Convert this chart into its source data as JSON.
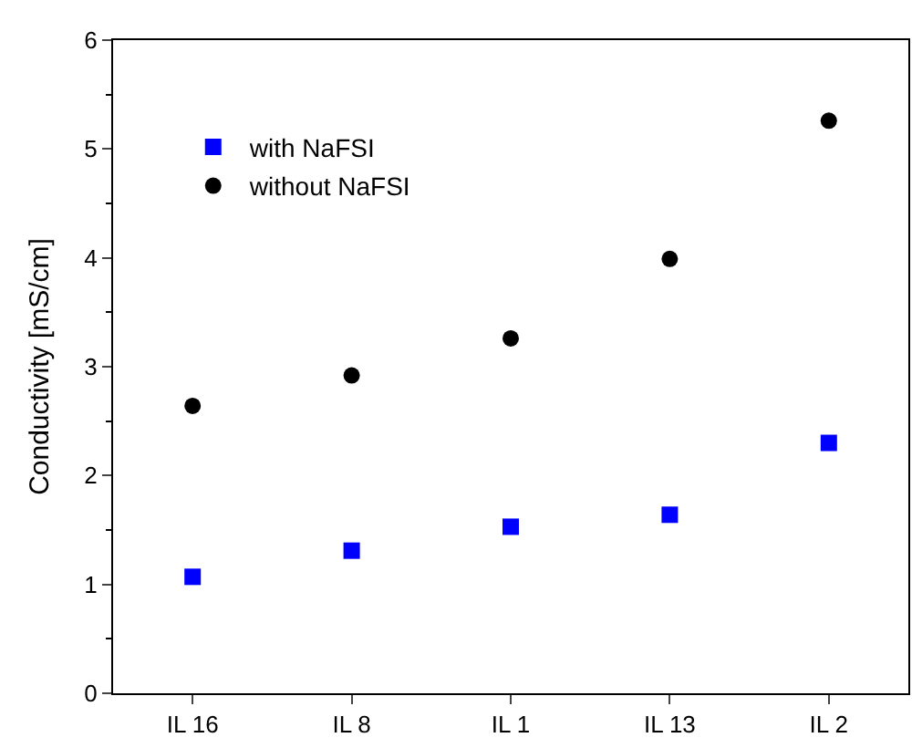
{
  "chart_data": {
    "type": "scatter",
    "ylabel": "Conductivity [mS/cm]",
    "categories": [
      "IL 16",
      "IL 8",
      "IL 1",
      "IL 13",
      "IL 2"
    ],
    "series": [
      {
        "name": "with NaFSI",
        "color": "#0000ff",
        "marker": "square",
        "values": [
          1.07,
          1.31,
          1.53,
          1.64,
          2.3
        ]
      },
      {
        "name": "without NaFSI",
        "color": "#000000",
        "marker": "circle",
        "values": [
          2.64,
          2.92,
          3.26,
          3.99,
          5.26
        ]
      }
    ],
    "ylim": [
      0,
      6
    ],
    "yticks": [
      0,
      1,
      2,
      3,
      4,
      5,
      6
    ],
    "grid": false,
    "legend": "top left"
  }
}
